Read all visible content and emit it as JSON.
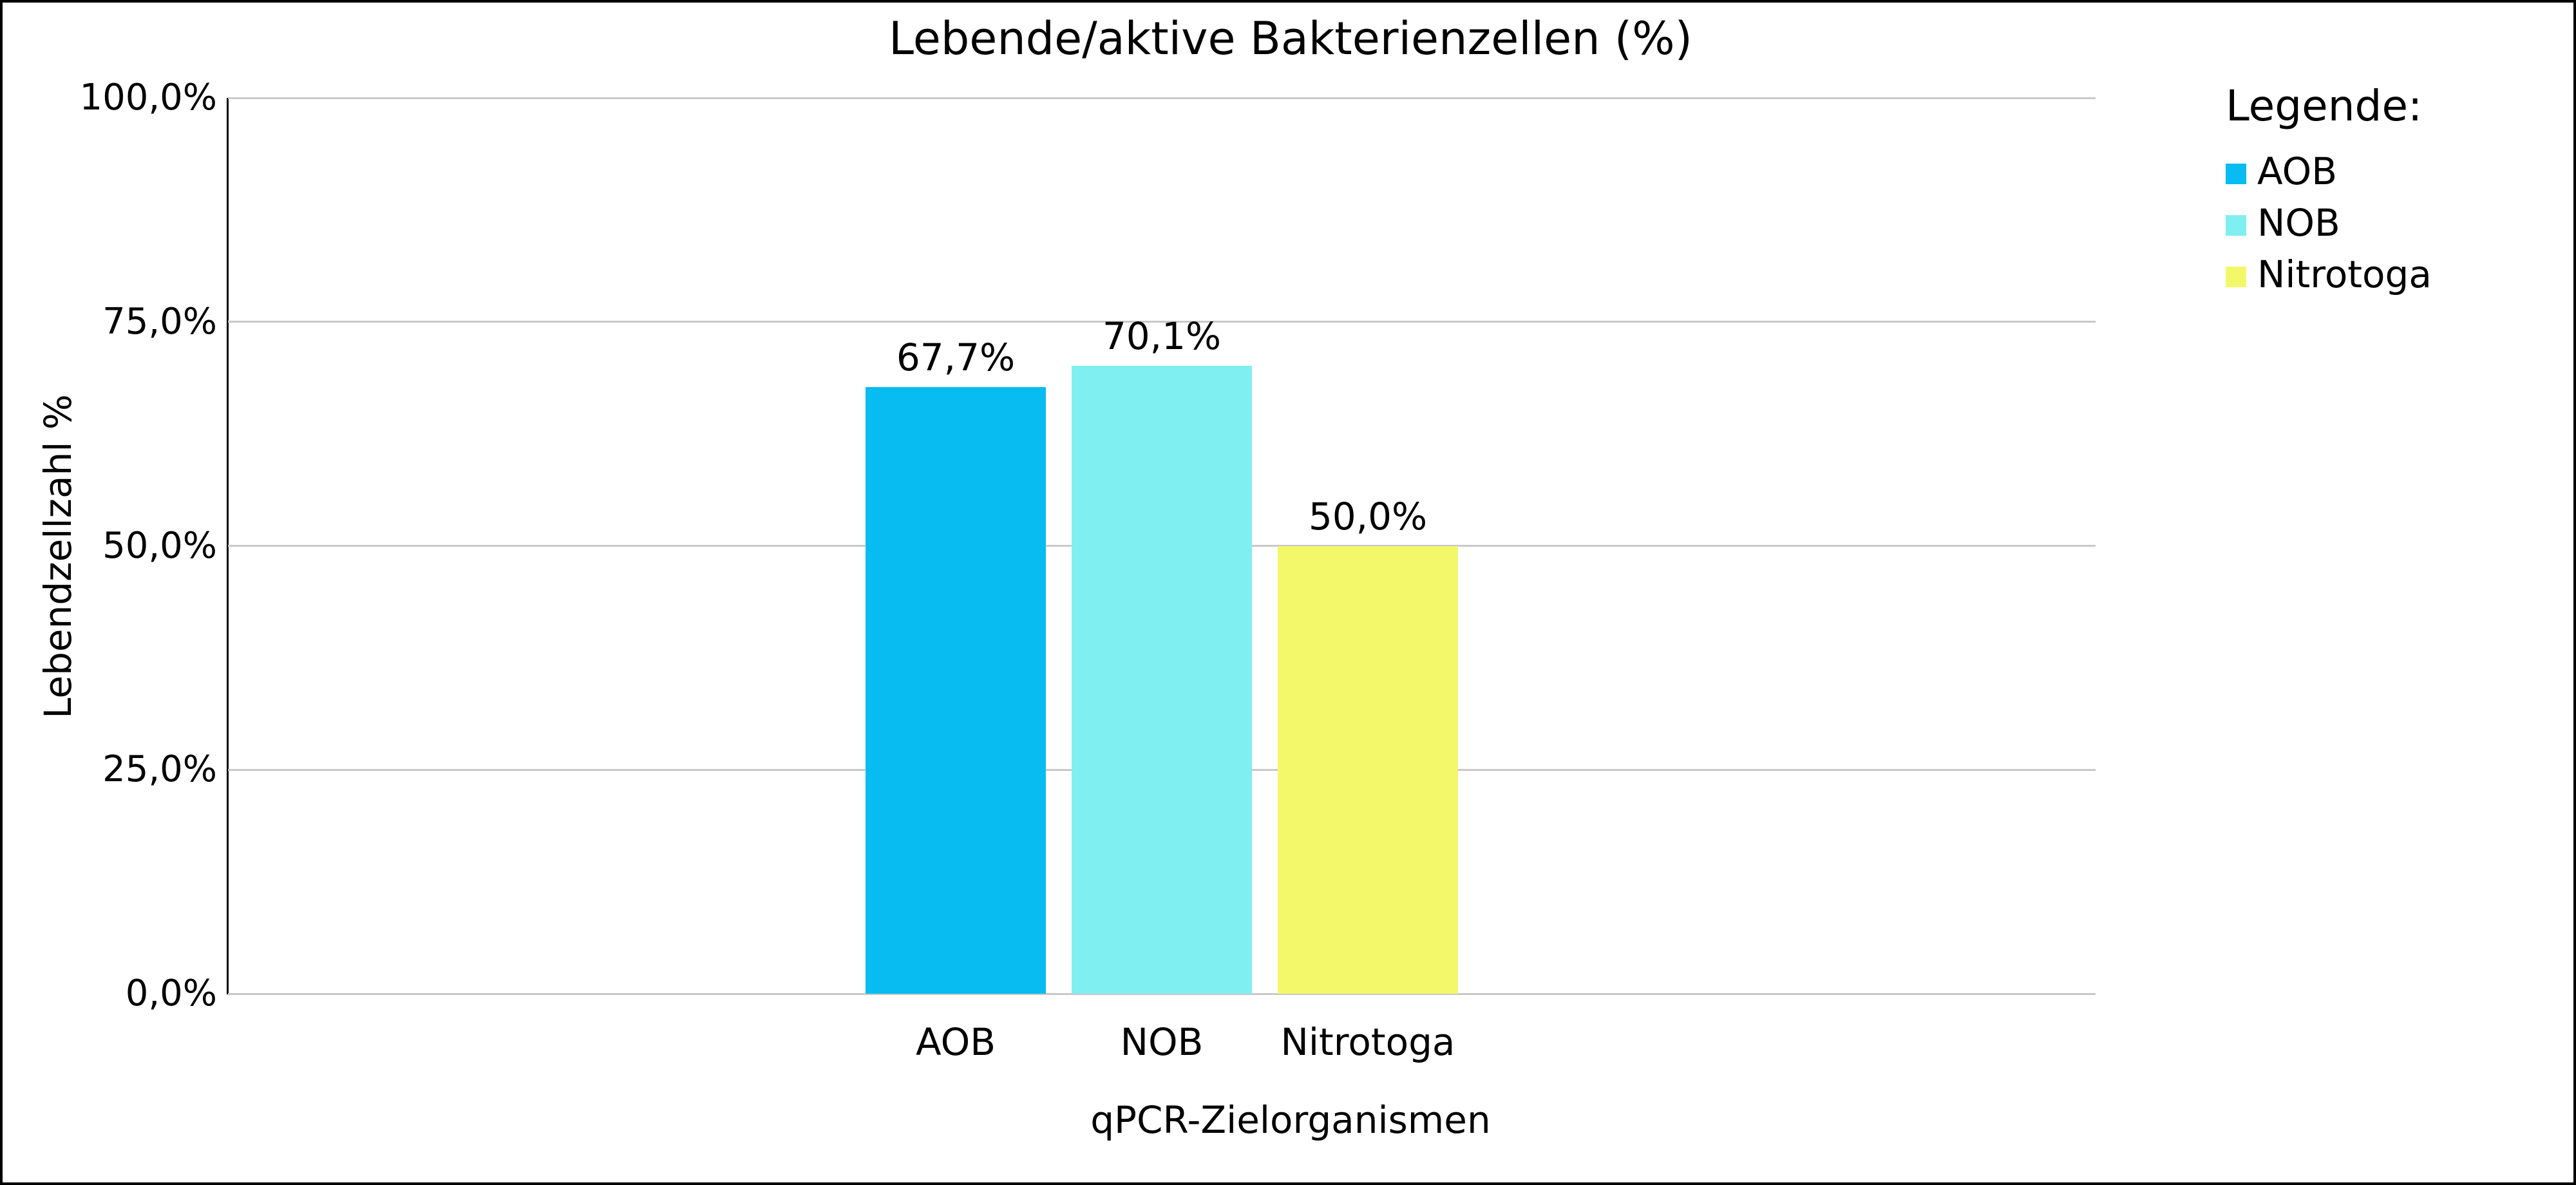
{
  "chart_data": {
    "type": "bar",
    "title": "Lebende/aktive Bakterienzellen (%)",
    "xlabel": "qPCR-Zielorganismen",
    "ylabel": "Lebendzellzahl %",
    "categories": [
      "AOB",
      "NOB",
      "Nitrotoga"
    ],
    "values": [
      67.7,
      70.1,
      50.0
    ],
    "value_labels": [
      "67,7%",
      "70,1%",
      "50,0%"
    ],
    "series_colors": [
      "#08bcf2",
      "#80eff2",
      "#f3f76a"
    ],
    "yticks": [
      0,
      25,
      50,
      75,
      100
    ],
    "ytick_labels": [
      "0,0%",
      "25,0%",
      "50,0%",
      "75,0%",
      "100,0%"
    ],
    "ylim": [
      0,
      100
    ],
    "grid": true,
    "gridline_color": "#c9c9c9",
    "axis_line_color": "#000000",
    "legend_position": "right",
    "legend": {
      "title": "Legende:",
      "items": [
        {
          "label": "AOB",
          "color": "#08bcf2"
        },
        {
          "label": "NOB",
          "color": "#80eff2"
        },
        {
          "label": "Nitrotoga",
          "color": "#f3f76a"
        }
      ]
    }
  }
}
